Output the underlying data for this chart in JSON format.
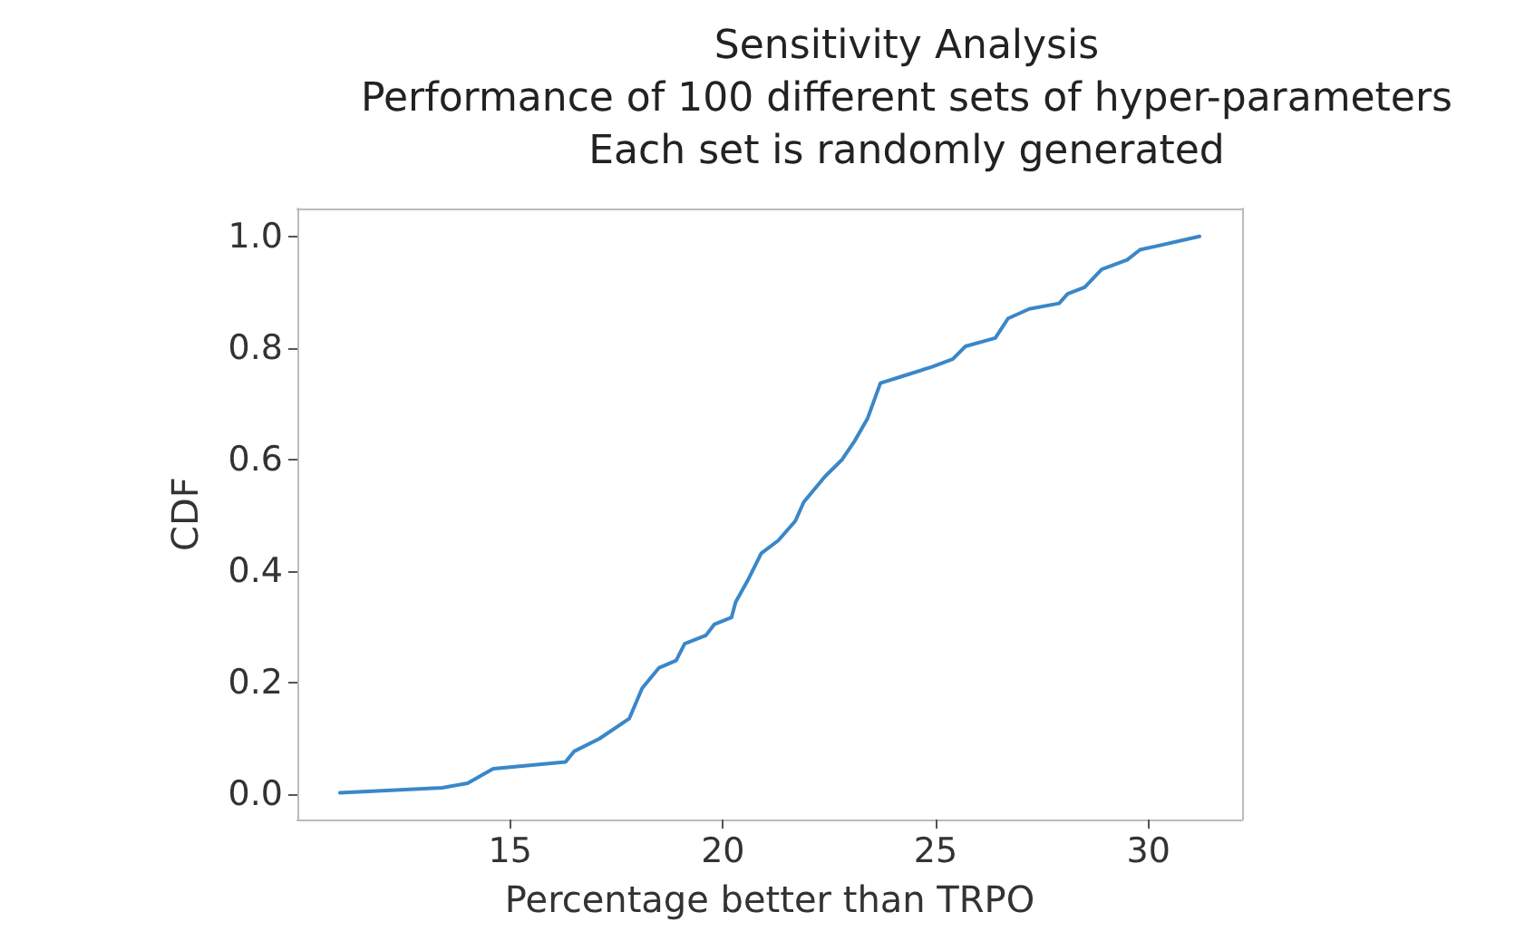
{
  "chart_data": {
    "type": "line",
    "title": "Sensitivity Analysis\nPerformance of 100 different sets of hyper-parameters\nEach set is randomly generated",
    "xlabel": "Percentage better than TRPO",
    "ylabel": "CDF",
    "x": [
      11.0,
      13.4,
      14.0,
      14.6,
      16.3,
      16.5,
      17.1,
      17.8,
      18.1,
      18.5,
      18.9,
      19.1,
      19.6,
      19.8,
      20.2,
      20.3,
      20.6,
      20.9,
      21.3,
      21.7,
      21.9,
      22.4,
      22.8,
      23.1,
      23.4,
      23.7,
      24.2,
      24.9,
      25.4,
      25.7,
      26.4,
      26.7,
      27.2,
      27.9,
      28.1,
      28.5,
      28.9,
      29.5,
      29.8,
      31.2
    ],
    "series": [
      {
        "color": "#3a87c8",
        "values": [
          0.003,
          0.012,
          0.02,
          0.046,
          0.058,
          0.077,
          0.1,
          0.136,
          0.19,
          0.227,
          0.24,
          0.27,
          0.285,
          0.305,
          0.317,
          0.345,
          0.386,
          0.432,
          0.455,
          0.49,
          0.524,
          0.57,
          0.6,
          0.634,
          0.674,
          0.737,
          0.749,
          0.766,
          0.78,
          0.803,
          0.818,
          0.853,
          0.87,
          0.88,
          0.897,
          0.909,
          0.941,
          0.958,
          0.976,
          1.0
        ]
      }
    ],
    "xlim": [
      10.0,
      32.2
    ],
    "ylim": [
      -0.045,
      1.05
    ],
    "xticks": [
      15,
      20,
      25,
      30
    ],
    "yticks": [
      {
        "value": 0,
        "label": "0.0"
      },
      {
        "value": 0.2,
        "label": "0.2"
      },
      {
        "value": 0.4,
        "label": "0.4"
      },
      {
        "value": 0.6,
        "label": "0.6"
      },
      {
        "value": 0.8,
        "label": "0.8"
      },
      {
        "value": 1,
        "label": "1.0"
      }
    ],
    "grid": false,
    "marker": "none",
    "line_style": "solid"
  }
}
